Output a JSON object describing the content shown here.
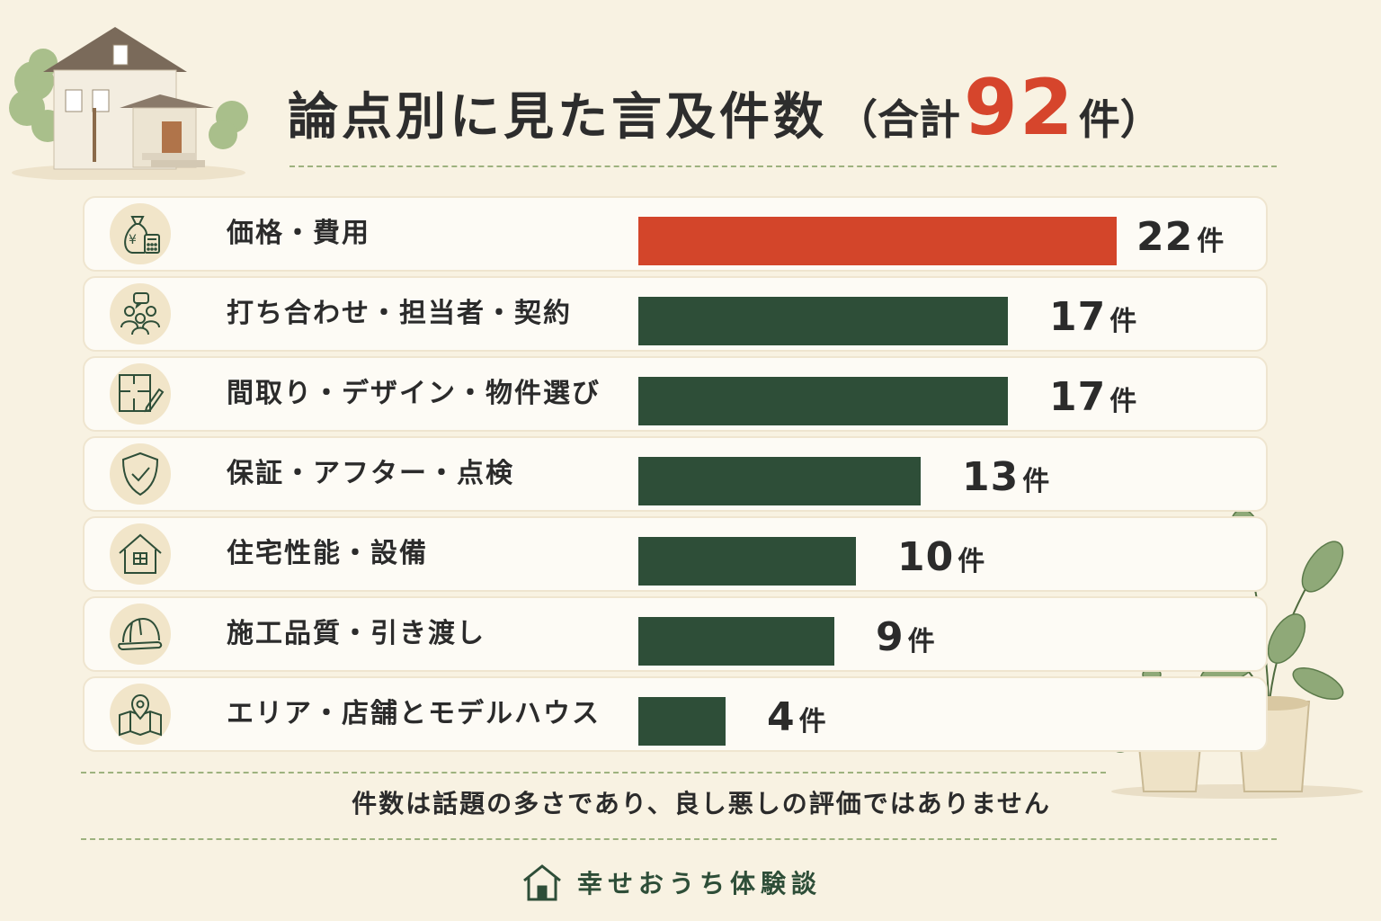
{
  "title": {
    "main": "論点別に見た言及件数",
    "open": "（合計",
    "total": "92",
    "unit": "件）"
  },
  "chart_data": {
    "type": "bar",
    "orientation": "horizontal",
    "title": "論点別に見た言及件数（合計92件）",
    "unit": "件",
    "categories": [
      "価格・費用",
      "打ち合わせ・担当者・契約",
      "間取り・デザイン・物件選び",
      "保証・アフター・点検",
      "住宅性能・設備",
      "施工品質・引き渡し",
      "エリア・店舗とモデルハウス"
    ],
    "values": [
      22,
      17,
      17,
      13,
      10,
      9,
      4
    ],
    "icons": [
      "money-bag-icon",
      "people-chat-icon",
      "floor-plan-icon",
      "shield-check-icon",
      "house-icon",
      "helmet-icon",
      "map-pin-icon"
    ],
    "highlight_index": 0,
    "colors": {
      "highlight": "#d3452a",
      "default": "#2e4e38"
    }
  },
  "note": "件数は話題の多さであり、良し悪しの評価ではありません",
  "footer": {
    "brand": "幸せおうち体験談",
    "icon": "house-icon"
  },
  "colors": {
    "background": "#f8f2e2",
    "accent": "#d6452c",
    "green": "#2e4e38"
  }
}
